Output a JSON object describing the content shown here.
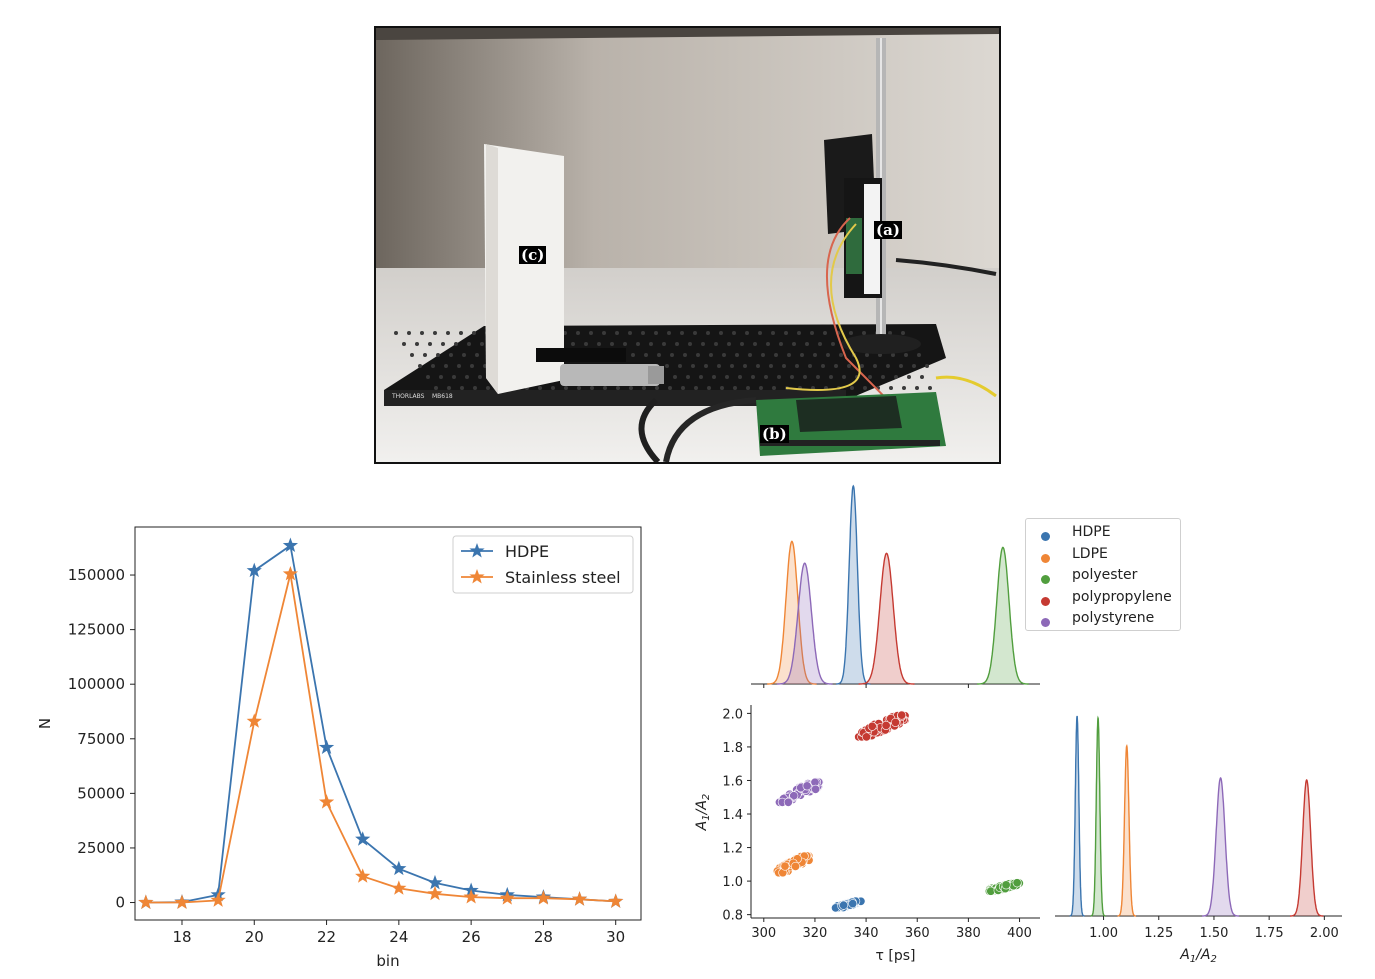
{
  "photo": {
    "labels": {
      "a": "(a)",
      "b": "(b)",
      "c": "(c)"
    },
    "plate_brand": "THORLABS",
    "plate_model": "MB618"
  },
  "chart_data": [
    {
      "type": "line",
      "xlabel": "bin",
      "ylabel": "N",
      "xlim": [
        16.7,
        30.7
      ],
      "ylim": [
        -8000,
        172000
      ],
      "x_ticks": [
        18,
        20,
        22,
        24,
        26,
        28,
        30
      ],
      "y_ticks": [
        0,
        25000,
        50000,
        75000,
        100000,
        125000,
        150000
      ],
      "legend_position": "top-right",
      "grid": false,
      "x": [
        17,
        18,
        19,
        20,
        21,
        22,
        23,
        24,
        25,
        26,
        27,
        28,
        29,
        30
      ],
      "series": [
        {
          "name": "HDPE",
          "color": "#3b75af",
          "marker": "star",
          "values": [
            0,
            200,
            3500,
            152000,
            163500,
            71000,
            29000,
            15500,
            9000,
            5500,
            3500,
            2500,
            1500,
            500
          ]
        },
        {
          "name": "Stainless steel",
          "color": "#ef8636",
          "marker": "star",
          "values": [
            0,
            0,
            1000,
            83000,
            150500,
            46000,
            12000,
            6500,
            4000,
            2500,
            2000,
            2000,
            1500,
            500
          ]
        }
      ]
    },
    {
      "type": "area",
      "subplot": "tau-density",
      "xlim": [
        295,
        408
      ],
      "x_ticks": [
        300,
        320,
        340,
        360,
        380,
        400
      ],
      "grid": false,
      "series": [
        {
          "name": "HDPE",
          "mean": 335,
          "sd": 1.6,
          "peak": 1.0,
          "color": "#3b75af"
        },
        {
          "name": "LDPE",
          "mean": 311,
          "sd": 2.3,
          "peak": 0.72,
          "color": "#ef8636"
        },
        {
          "name": "polyester",
          "mean": 393.5,
          "sd": 2.4,
          "peak": 0.69,
          "color": "#519e3e"
        },
        {
          "name": "polypropylene",
          "mean": 348,
          "sd": 2.6,
          "peak": 0.66,
          "color": "#c53a32"
        },
        {
          "name": "polystyrene",
          "mean": 316,
          "sd": 2.6,
          "peak": 0.61,
          "color": "#8d69b8"
        }
      ]
    },
    {
      "type": "scatter",
      "subplot": "tau-vs-ratio",
      "xlabel": "τ [ps]",
      "ylabel": "A1/A2",
      "xlim": [
        295,
        408
      ],
      "ylim": [
        0.78,
        2.05
      ],
      "x_ticks": [
        300,
        320,
        340,
        360,
        380,
        400
      ],
      "y_ticks": [
        0.8,
        1.0,
        1.2,
        1.4,
        1.6,
        1.8,
        2.0
      ],
      "grid": false,
      "series": [
        {
          "name": "HDPE",
          "color": "#3b75af",
          "x_range": [
            328,
            338
          ],
          "y_range": [
            0.84,
            0.88
          ]
        },
        {
          "name": "LDPE",
          "color": "#ef8636",
          "x_range": [
            305,
            318
          ],
          "y_range": [
            1.05,
            1.15
          ]
        },
        {
          "name": "polyester",
          "color": "#519e3e",
          "x_range": [
            388,
            400
          ],
          "y_range": [
            0.94,
            0.99
          ]
        },
        {
          "name": "polypropylene",
          "color": "#c53a32",
          "x_range": [
            337,
            356
          ],
          "y_range": [
            1.86,
            1.99
          ]
        },
        {
          "name": "polystyrene",
          "color": "#8d69b8",
          "x_range": [
            306,
            322
          ],
          "y_range": [
            1.47,
            1.59
          ]
        }
      ]
    },
    {
      "type": "area",
      "subplot": "ratio-density",
      "xlabel": "A1/A2",
      "xlim": [
        0.78,
        2.08
      ],
      "x_ticks": [
        1.0,
        1.25,
        1.5,
        1.75,
        2.0
      ],
      "grid": false,
      "series": [
        {
          "name": "HDPE",
          "mean": 0.88,
          "sd": 0.008,
          "peak": 1.0,
          "color": "#3b75af"
        },
        {
          "name": "polyester",
          "mean": 0.975,
          "sd": 0.008,
          "peak": 0.99,
          "color": "#519e3e"
        },
        {
          "name": "LDPE",
          "mean": 1.105,
          "sd": 0.01,
          "peak": 0.85,
          "color": "#ef8636"
        },
        {
          "name": "polystyrene",
          "mean": 1.53,
          "sd": 0.02,
          "peak": 0.69,
          "color": "#8d69b8"
        },
        {
          "name": "polypropylene",
          "mean": 1.92,
          "sd": 0.018,
          "peak": 0.68,
          "color": "#c53a32"
        }
      ]
    }
  ],
  "legend_right": {
    "position": "top-right",
    "items": [
      {
        "label": "HDPE",
        "color": "#3b75af"
      },
      {
        "label": "LDPE",
        "color": "#ef8636"
      },
      {
        "label": "polyester",
        "color": "#519e3e"
      },
      {
        "label": "polypropylene",
        "color": "#c53a32"
      },
      {
        "label": "polystyrene",
        "color": "#8d69b8"
      }
    ]
  }
}
